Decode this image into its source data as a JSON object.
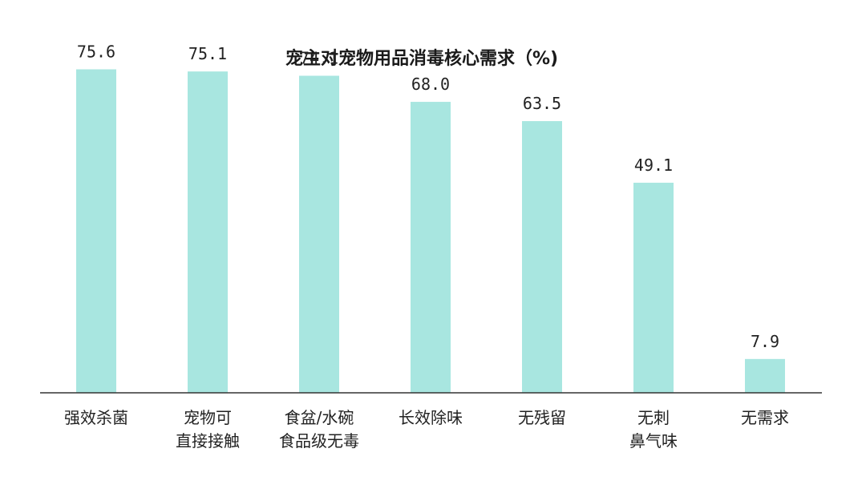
{
  "chart_data": {
    "type": "bar",
    "title": "宠主对宠物用品消毒核心需求（%)",
    "categories": [
      [
        "强效杀菌"
      ],
      [
        "宠物可",
        "直接接触"
      ],
      [
        "食盆/水碗",
        "食品级无毒"
      ],
      [
        "长效除味"
      ],
      [
        "无残留"
      ],
      [
        "无刺",
        "鼻气味"
      ],
      [
        "无需求"
      ]
    ],
    "values": [
      75.6,
      75.1,
      74.1,
      68.0,
      63.5,
      49.1,
      7.9
    ],
    "value_labels": [
      "75.6",
      "75.1",
      "74.1",
      "68.0",
      "63.5",
      "49.1",
      "7.9"
    ],
    "ylim": [
      0,
      80
    ],
    "grid": false,
    "bar_color": "#a8e6e0",
    "axis_color": "#333333"
  }
}
